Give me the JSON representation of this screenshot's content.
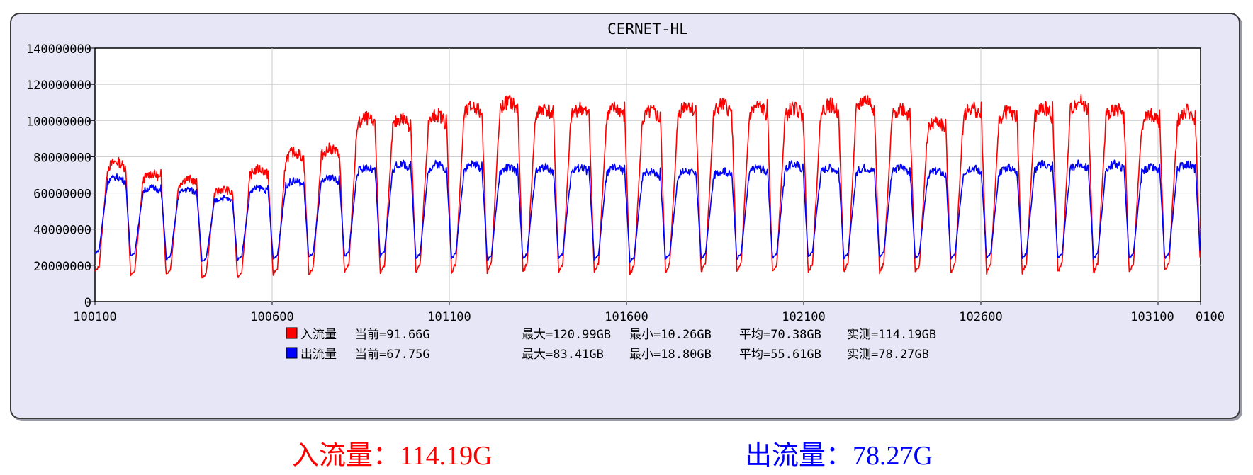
{
  "chart_data": {
    "type": "line",
    "title": "CERNET-HL",
    "xlabel": "",
    "ylabel": "",
    "ylim": [
      0,
      140000000
    ],
    "y_ticks": [
      "0",
      "20000000",
      "40000000",
      "60000000",
      "80000000",
      "100000000",
      "120000000",
      "140000000"
    ],
    "x_ticks": [
      "100100",
      "100600",
      "101100",
      "101600",
      "102100",
      "102600",
      "103100",
      "0100"
    ],
    "grid": true,
    "legend_position": "bottom",
    "days": 31,
    "series": [
      {
        "name": "入流量",
        "color": "#ff0000",
        "daily_peaks": [
          82000000,
          75000000,
          72000000,
          66000000,
          78000000,
          88000000,
          90000000,
          108000000,
          108000000,
          110000000,
          115000000,
          118000000,
          114000000,
          114000000,
          114000000,
          112000000,
          116000000,
          116000000,
          115000000,
          114000000,
          116000000,
          119000000,
          114000000,
          106000000,
          114000000,
          112000000,
          114000000,
          118000000,
          114000000,
          110000000,
          112000000
        ],
        "daily_troughs": [
          13000000,
          11000000,
          12000000,
          10000000,
          10000000,
          11000000,
          11000000,
          11000000,
          11000000,
          11000000,
          11000000,
          11000000,
          11000000,
          11000000,
          11000000,
          10000000,
          11000000,
          11000000,
          11000000,
          11000000,
          11000000,
          11000000,
          11000000,
          11000000,
          11000000,
          11000000,
          11000000,
          11000000,
          11000000,
          11000000,
          12000000
        ]
      },
      {
        "name": "出流量",
        "color": "#0000ff",
        "daily_peaks": [
          72000000,
          66000000,
          65000000,
          60000000,
          66000000,
          70000000,
          72000000,
          78000000,
          80000000,
          80000000,
          80000000,
          78000000,
          78000000,
          78000000,
          78000000,
          76000000,
          76000000,
          76000000,
          78000000,
          80000000,
          78000000,
          78000000,
          78000000,
          76000000,
          78000000,
          78000000,
          80000000,
          80000000,
          80000000,
          78000000,
          80000000
        ],
        "daily_troughs": [
          24000000,
          23000000,
          21000000,
          20000000,
          21000000,
          21000000,
          22000000,
          22000000,
          22000000,
          21000000,
          21000000,
          20000000,
          21000000,
          21000000,
          20000000,
          19000000,
          21000000,
          21000000,
          21000000,
          21000000,
          22000000,
          21000000,
          22000000,
          21000000,
          21000000,
          21000000,
          21000000,
          21000000,
          21000000,
          21000000,
          21000000
        ]
      }
    ],
    "legend": [
      {
        "name": "入流量",
        "color": "#ff0000",
        "current": "当前=91.66G",
        "max": "最大=120.99GB",
        "min": "最小=10.26GB",
        "avg": "平均=70.38GB",
        "measured": "实测=114.19GB"
      },
      {
        "name": "出流量",
        "color": "#0000ff",
        "current": "当前=67.75G",
        "max": "最大=83.41GB",
        "min": "最小=18.80GB",
        "avg": "平均=55.61GB",
        "measured": "实测=78.27GB"
      }
    ]
  },
  "summary": {
    "in_text": "入流量：114.19G",
    "out_text": "出流量：78.27G"
  }
}
